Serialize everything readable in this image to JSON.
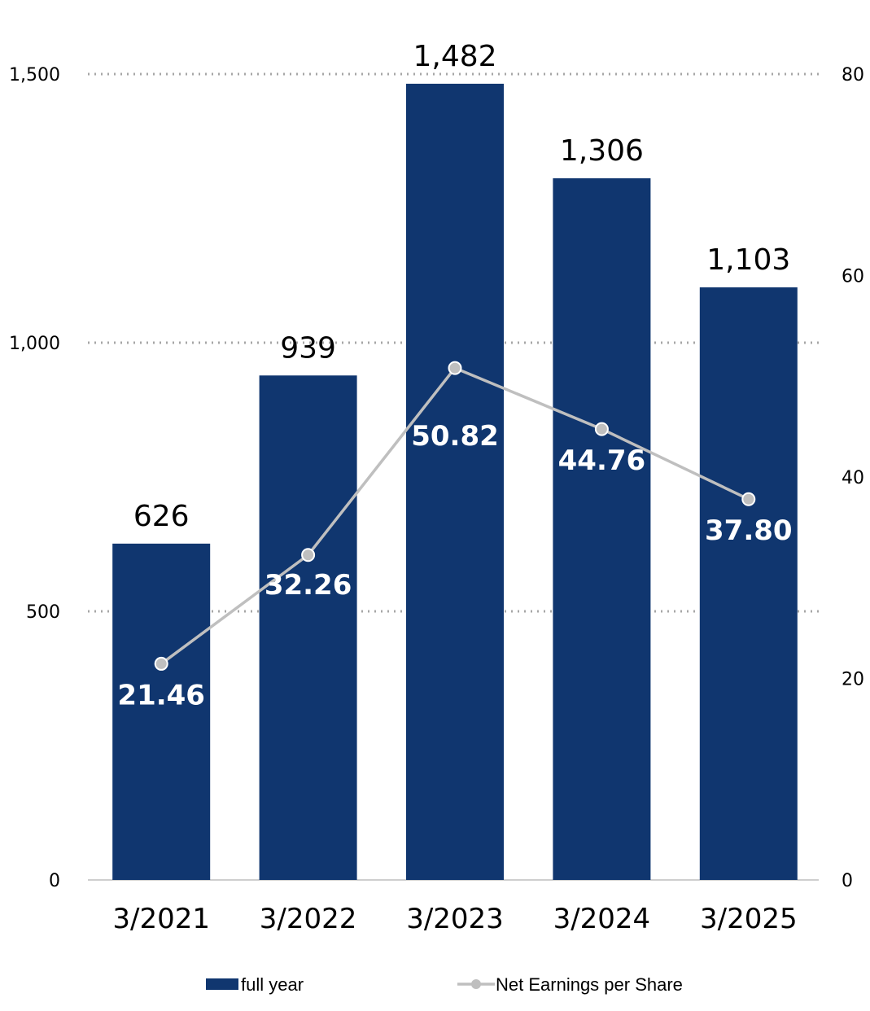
{
  "chart_data": {
    "type": "bar",
    "categories": [
      "3/2021",
      "3/2022",
      "3/2023",
      "3/2024",
      "3/2025"
    ],
    "series": [
      {
        "name": "full year",
        "type": "bar",
        "axis": "left",
        "color": "#10366f",
        "values": [
          626,
          939,
          1482,
          1306,
          1103
        ],
        "labels": [
          "626",
          "939",
          "1,482",
          "1,306",
          "1,103"
        ]
      },
      {
        "name": "Net Earnings per Share",
        "type": "line",
        "axis": "right",
        "color": "#bfbfbf",
        "values": [
          21.46,
          32.26,
          50.82,
          44.76,
          37.8
        ],
        "labels": [
          "21.46",
          "32.26",
          "50.82",
          "44.76",
          "37.80"
        ]
      }
    ],
    "y_left": {
      "min": 0,
      "max": 1500,
      "ticks": [
        0,
        500,
        1000,
        1500
      ],
      "tick_labels": [
        "0",
        "500",
        "1,000",
        "1,500"
      ]
    },
    "y_right": {
      "min": 0,
      "max": 80,
      "ticks": [
        0,
        20,
        40,
        60,
        80
      ],
      "tick_labels": [
        "0",
        "20",
        "40",
        "60",
        "80"
      ]
    },
    "grid": true,
    "legend": "bottom"
  }
}
